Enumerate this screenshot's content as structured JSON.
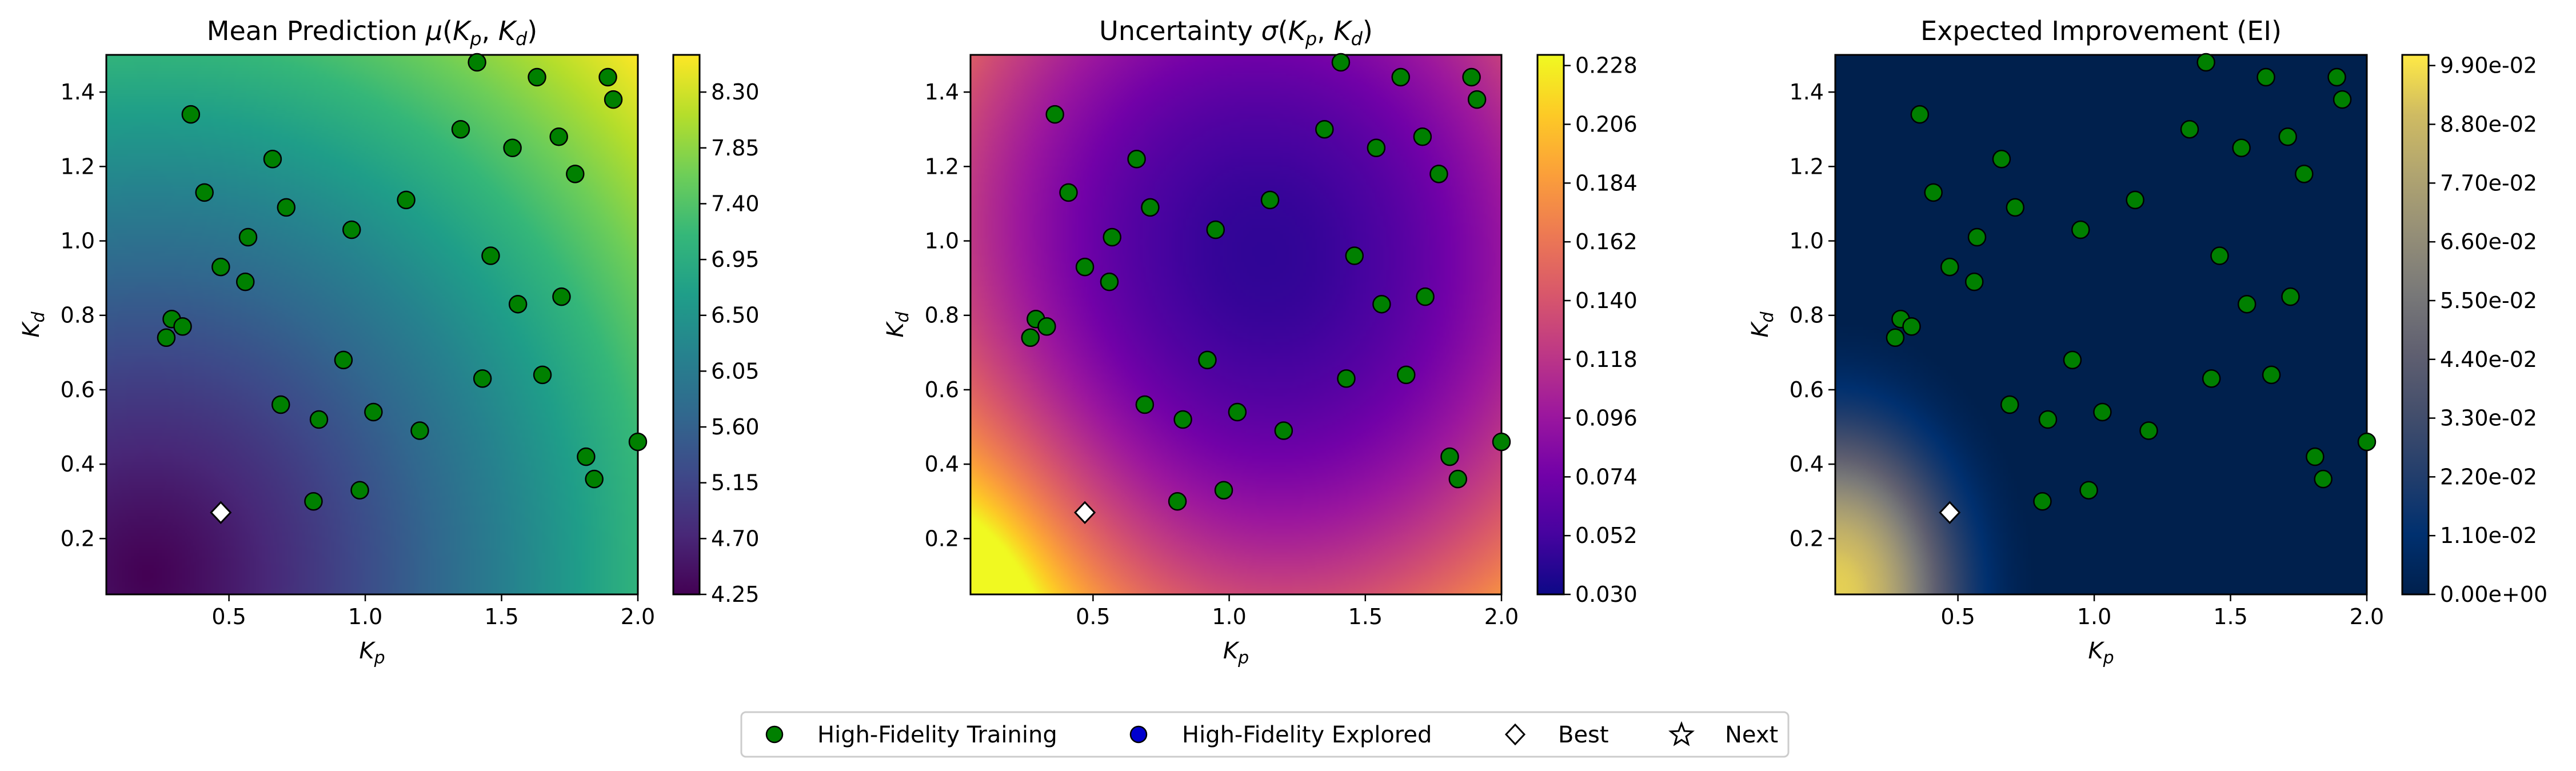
{
  "chart_data": [
    {
      "type": "heatmap",
      "title": "Mean Prediction μ(Kp, Kd)",
      "title_parts": {
        "main": "Mean Prediction ",
        "sym": "μ",
        "open": "(",
        "v1": "K",
        "s1": "p",
        "comma": ", ",
        "v2": "K",
        "s2": "d",
        "close": ")"
      },
      "xlabel": {
        "base": "K",
        "sub": "p"
      },
      "ylabel": {
        "base": "K",
        "sub": "d"
      },
      "xlim": [
        0.05,
        2.0
      ],
      "ylim": [
        0.05,
        1.5
      ],
      "xticks": [
        "0.5",
        "1.0",
        "1.5",
        "2.0"
      ],
      "yticks": [
        "0.2",
        "0.4",
        "0.6",
        "0.8",
        "1.0",
        "1.2",
        "1.4"
      ],
      "colormap": "viridis",
      "colorbar_range": [
        4.25,
        8.6
      ],
      "colorbar_ticks": [
        "4.25",
        "4.70",
        "5.15",
        "5.60",
        "6.05",
        "6.50",
        "6.95",
        "7.40",
        "7.85",
        "8.30"
      ],
      "field": {
        "min_at": [
          0.2,
          0.1
        ],
        "max_at": [
          2.0,
          1.5
        ]
      }
    },
    {
      "type": "heatmap",
      "title": "Uncertainty σ(Kp, Kd)",
      "title_parts": {
        "main": "Uncertainty ",
        "sym": "σ",
        "open": "(",
        "v1": "K",
        "s1": "p",
        "comma": ", ",
        "v2": "K",
        "s2": "d",
        "close": ")"
      },
      "xlabel": {
        "base": "K",
        "sub": "p"
      },
      "ylabel": {
        "base": "K",
        "sub": "d"
      },
      "xlim": [
        0.05,
        2.0
      ],
      "ylim": [
        0.05,
        1.5
      ],
      "xticks": [
        "0.5",
        "1.0",
        "1.5",
        "2.0"
      ],
      "yticks": [
        "0.2",
        "0.4",
        "0.6",
        "0.8",
        "1.0",
        "1.2",
        "1.4"
      ],
      "colormap": "plasma",
      "colorbar_range": [
        0.03,
        0.232
      ],
      "colorbar_ticks": [
        "0.030",
        "0.052",
        "0.074",
        "0.096",
        "0.118",
        "0.140",
        "0.162",
        "0.184",
        "0.206",
        "0.228"
      ],
      "field": {
        "min_at": [
          1.1,
          0.95
        ],
        "max_at": [
          0.05,
          0.05
        ]
      }
    },
    {
      "type": "heatmap",
      "title": "Expected Improvement (EI)",
      "title_parts": {
        "main": "Expected Improvement (EI)",
        "sym": "",
        "open": "",
        "v1": "",
        "s1": "",
        "comma": "",
        "v2": "",
        "s2": "",
        "close": ""
      },
      "xlabel": {
        "base": "K",
        "sub": "p"
      },
      "ylabel": {
        "base": "K",
        "sub": "d"
      },
      "xlim": [
        0.05,
        2.0
      ],
      "ylim": [
        0.05,
        1.5
      ],
      "xticks": [
        "0.5",
        "1.0",
        "1.5",
        "2.0"
      ],
      "yticks": [
        "0.2",
        "0.4",
        "0.6",
        "0.8",
        "1.0",
        "1.2",
        "1.4"
      ],
      "colormap": "cividis",
      "colorbar_range": [
        0.0,
        0.101
      ],
      "colorbar_ticks": [
        "0.00e+00",
        "1.10e-02",
        "2.20e-02",
        "3.30e-02",
        "4.40e-02",
        "5.50e-02",
        "6.60e-02",
        "7.70e-02",
        "8.80e-02",
        "9.90e-02"
      ],
      "field": {
        "max_at": [
          0.05,
          0.05
        ],
        "radius": 0.55
      }
    }
  ],
  "training_points": [
    [
      0.36,
      1.34
    ],
    [
      0.41,
      1.13
    ],
    [
      0.66,
      1.22
    ],
    [
      0.71,
      1.09
    ],
    [
      0.57,
      1.01
    ],
    [
      0.47,
      0.93
    ],
    [
      0.56,
      0.89
    ],
    [
      0.95,
      1.03
    ],
    [
      1.15,
      1.11
    ],
    [
      1.41,
      1.48
    ],
    [
      1.35,
      1.3
    ],
    [
      1.54,
      1.25
    ],
    [
      1.63,
      1.44
    ],
    [
      1.71,
      1.28
    ],
    [
      1.77,
      1.18
    ],
    [
      1.89,
      1.44
    ],
    [
      1.91,
      1.38
    ],
    [
      1.46,
      0.96
    ],
    [
      1.56,
      0.83
    ],
    [
      1.72,
      0.85
    ],
    [
      0.29,
      0.79
    ],
    [
      0.33,
      0.77
    ],
    [
      0.27,
      0.74
    ],
    [
      0.92,
      0.68
    ],
    [
      0.69,
      0.56
    ],
    [
      1.43,
      0.63
    ],
    [
      1.65,
      0.64
    ],
    [
      1.03,
      0.54
    ],
    [
      0.83,
      0.52
    ],
    [
      1.2,
      0.49
    ],
    [
      1.81,
      0.42
    ],
    [
      1.84,
      0.36
    ],
    [
      2.0,
      0.46
    ],
    [
      0.81,
      0.3
    ],
    [
      0.98,
      0.33
    ]
  ],
  "best_point": [
    0.47,
    0.27
  ],
  "legend": {
    "position": "bottom-center",
    "items": [
      {
        "label": "High-Fidelity Training",
        "marker": "circle",
        "color": "#008000"
      },
      {
        "label": "High-Fidelity Explored",
        "marker": "circle",
        "color": "#0000cd"
      },
      {
        "label": "Best",
        "marker": "diamond",
        "color": "#ffffff"
      },
      {
        "label": "Next",
        "marker": "star",
        "color": "#ffffff"
      }
    ]
  }
}
